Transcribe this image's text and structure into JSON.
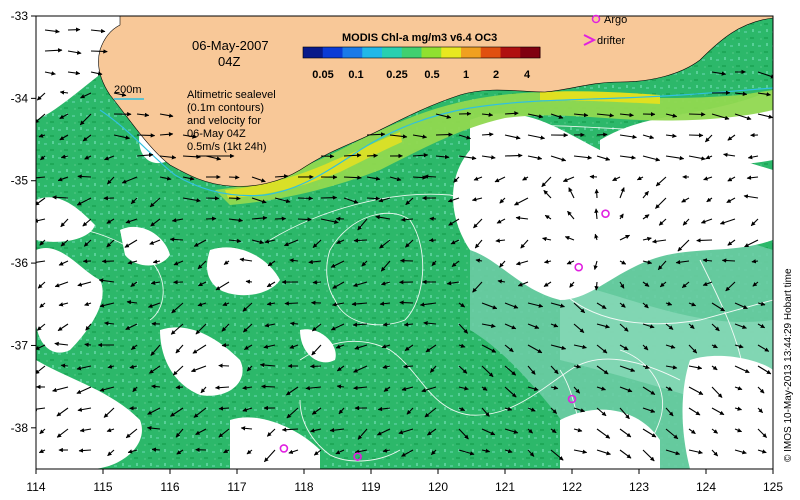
{
  "map": {
    "date_line1": "06-May-2007",
    "date_line2": "04Z",
    "isobath_label": "200m",
    "legend_text": [
      "Altimetric sealevel",
      "(0.1m contours)",
      "and velocity for",
      "06-May 04Z",
      "0.5m/s (1kt 24h)"
    ],
    "colorbar": {
      "title": "MODIS Chl-a mg/m3 v6.4 OC3",
      "ticks": [
        "0.05",
        "0.1",
        "0.25",
        "0.5",
        "1",
        "2",
        "4"
      ],
      "colors": [
        "#081a8a",
        "#0a3bd6",
        "#1a7ae8",
        "#20b8e8",
        "#28d0b0",
        "#40d070",
        "#90e030",
        "#e8e820",
        "#f0a020",
        "#e05010",
        "#b01010",
        "#800010"
      ]
    },
    "markers_legend": {
      "argo_label": "Argo",
      "drifter_label": "drifter"
    },
    "x_axis": {
      "ticks": [
        "114",
        "115",
        "116",
        "117",
        "118",
        "119",
        "120",
        "121",
        "122",
        "123",
        "124",
        "125"
      ]
    },
    "y_axis": {
      "ticks": [
        "-33",
        "-34",
        "-35",
        "-36",
        "-37",
        "-38"
      ]
    },
    "argo_floats": [
      {
        "lon": 122.5,
        "lat": -35.4
      },
      {
        "lon": 122.1,
        "lat": -36.05
      },
      {
        "lon": 122.0,
        "lat": -37.65
      },
      {
        "lon": 117.7,
        "lat": -38.25
      },
      {
        "lon": 118.8,
        "lat": -38.35
      }
    ],
    "credit": "© IMOS 10-May-2013 13:44:29 Hobart time",
    "colors": {
      "land": "#f8c898",
      "cloud": "#ffffff",
      "ocean_green": "#28b868",
      "ocean_teal": "#6cd0a0",
      "coastal_yellow": "#e0e020",
      "isobath": "#30c0e0",
      "argo": "#e020e0"
    }
  }
}
